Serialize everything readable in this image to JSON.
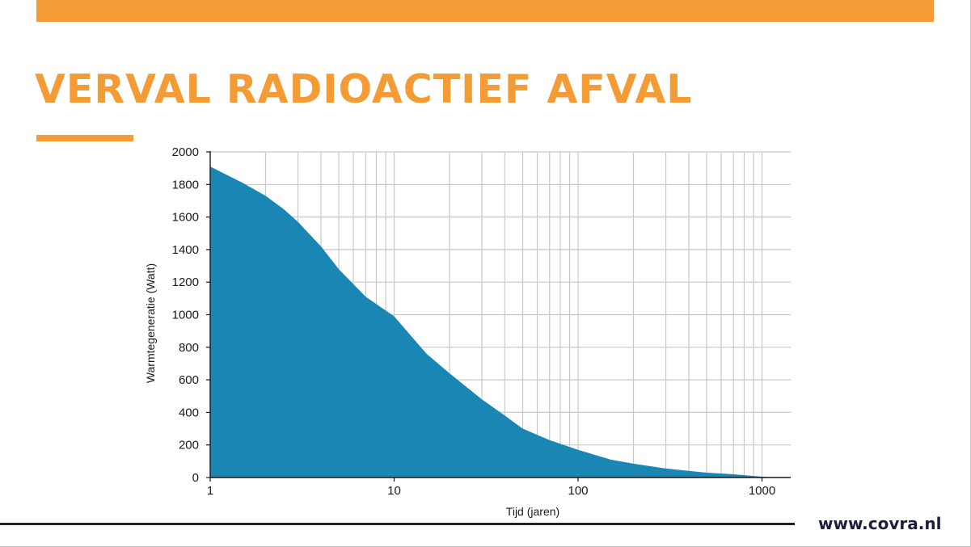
{
  "slide": {
    "title": "VERVAL RADIOACTIEF AFVAL",
    "footer_url": "www.covra.nl",
    "accent_color": "#f39c35",
    "area_color": "#1a86b3"
  },
  "chart_data": {
    "type": "area",
    "title": "",
    "xlabel": "Tijd (jaren)",
    "ylabel": "Warmtegeneratie (Watt)",
    "x_scale": "log",
    "xlim": [
      1,
      1500
    ],
    "ylim": [
      0,
      2000
    ],
    "grid": true,
    "x_ticks": [
      1,
      10,
      100,
      1000
    ],
    "x_tick_labels": [
      "1",
      "10",
      "100",
      "1000"
    ],
    "y_ticks": [
      0,
      200,
      400,
      600,
      800,
      1000,
      1200,
      1400,
      1600,
      1800,
      2000
    ],
    "y_tick_labels": [
      "0",
      "200",
      "400",
      "600",
      "800",
      "1000",
      "1200",
      "1400",
      "1600",
      "1800",
      "2000"
    ],
    "series": [
      {
        "x": [
          1,
          1.5,
          2,
          2.5,
          3,
          4,
          5,
          7,
          10,
          15,
          20,
          30,
          40,
          50,
          70,
          100,
          150,
          200,
          300,
          500,
          700,
          1000,
          1200
        ],
        "values": [
          1910,
          1810,
          1730,
          1650,
          1570,
          1420,
          1280,
          1110,
          990,
          760,
          640,
          480,
          380,
          300,
          230,
          170,
          110,
          85,
          55,
          30,
          20,
          5,
          0
        ]
      }
    ]
  }
}
